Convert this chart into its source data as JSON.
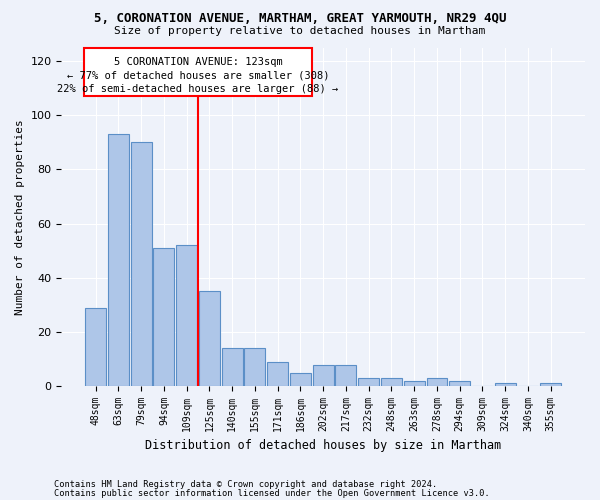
{
  "title": "5, CORONATION AVENUE, MARTHAM, GREAT YARMOUTH, NR29 4QU",
  "subtitle": "Size of property relative to detached houses in Martham",
  "xlabel": "Distribution of detached houses by size in Martham",
  "ylabel": "Number of detached properties",
  "categories": [
    "48sqm",
    "63sqm",
    "79sqm",
    "94sqm",
    "109sqm",
    "125sqm",
    "140sqm",
    "155sqm",
    "171sqm",
    "186sqm",
    "202sqm",
    "217sqm",
    "232sqm",
    "248sqm",
    "263sqm",
    "278sqm",
    "294sqm",
    "309sqm",
    "324sqm",
    "340sqm",
    "355sqm"
  ],
  "values": [
    29,
    93,
    90,
    51,
    52,
    35,
    14,
    14,
    9,
    5,
    8,
    8,
    3,
    3,
    2,
    3,
    2,
    0,
    1,
    0,
    1
  ],
  "bar_color": "#aec6e8",
  "bar_edge_color": "#5b8fc7",
  "highlight_index": 5,
  "ylim": [
    0,
    125
  ],
  "yticks": [
    0,
    20,
    40,
    60,
    80,
    100,
    120
  ],
  "annotation_title": "5 CORONATION AVENUE: 123sqm",
  "annotation_line1": "← 77% of detached houses are smaller (308)",
  "annotation_line2": "22% of semi-detached houses are larger (88) →",
  "footer1": "Contains HM Land Registry data © Crown copyright and database right 2024.",
  "footer2": "Contains public sector information licensed under the Open Government Licence v3.0.",
  "background_color": "#eef2fa",
  "plot_bg_color": "#eef2fa"
}
